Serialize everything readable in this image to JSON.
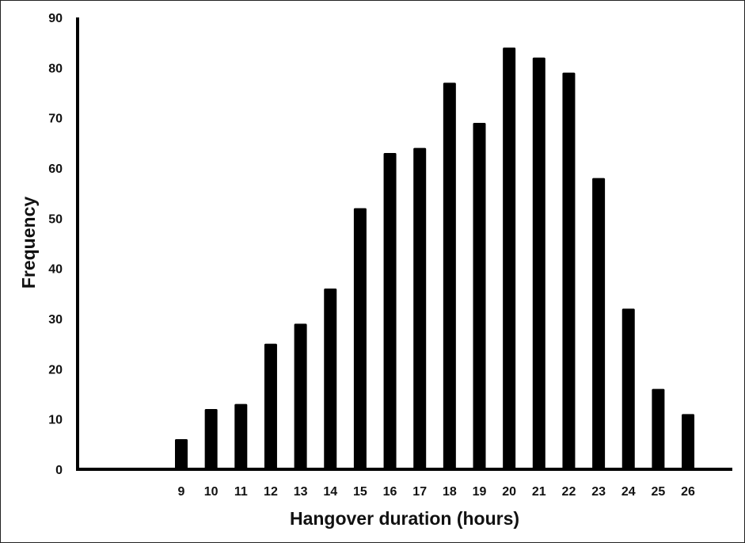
{
  "chart_data": {
    "type": "bar",
    "title": "",
    "xlabel": "Hangover duration (hours)",
    "ylabel": "Frequency",
    "categories": [
      "9",
      "10",
      "11",
      "12",
      "13",
      "14",
      "15",
      "16",
      "17",
      "18",
      "19",
      "20",
      "21",
      "22",
      "23",
      "24",
      "25",
      "26"
    ],
    "values": [
      6,
      12,
      13,
      25,
      29,
      36,
      52,
      63,
      64,
      77,
      69,
      84,
      82,
      79,
      58,
      32,
      16,
      11
    ],
    "ylim": [
      0,
      90
    ],
    "yticks": [
      "0",
      "10",
      "20",
      "30",
      "40",
      "50",
      "60",
      "70",
      "80",
      "90"
    ],
    "grid": false,
    "legend": "none",
    "bar_color": "#000000"
  }
}
